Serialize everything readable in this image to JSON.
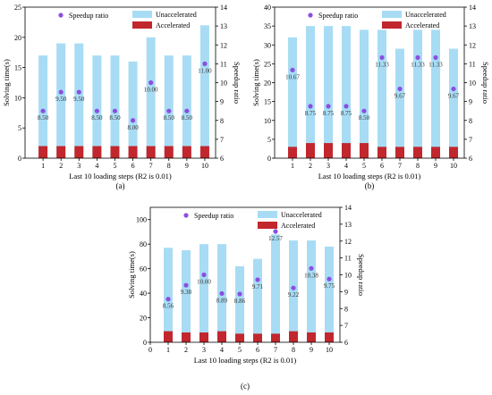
{
  "figure": {
    "panel_labels": [
      "(a)",
      "(b)",
      "(c)"
    ]
  },
  "colors": {
    "unaccelerated": "#a8dcf4",
    "accelerated": "#c1272d",
    "speedup": "#8a4fe0",
    "axis": "#000000"
  },
  "chart_data": [
    {
      "panel": "(a)",
      "type": "bar",
      "categories": [
        "1",
        "2",
        "3",
        "4",
        "5",
        "6",
        "7",
        "8",
        "9",
        "10"
      ],
      "series": [
        {
          "name": "Unaccelerated",
          "axis": "left",
          "values": [
            17,
            19,
            19,
            17,
            17,
            16,
            20,
            17,
            17,
            22
          ]
        },
        {
          "name": "Accelerated",
          "axis": "left",
          "values": [
            2,
            2,
            2,
            2,
            2,
            2,
            2,
            2,
            2,
            2
          ]
        },
        {
          "name": "Speedup ratio",
          "axis": "right",
          "kind": "scatter",
          "values": [
            8.5,
            9.5,
            9.5,
            8.5,
            8.5,
            8.0,
            10.0,
            8.5,
            8.5,
            11.0
          ],
          "labels": [
            "8.50",
            "9.50",
            "9.50",
            "8.50",
            "8.50",
            "8.00",
            "10.00",
            "8.50",
            "8.50",
            "11.00"
          ]
        }
      ],
      "xlabel": "Last 10 loading steps (R2 is 0.01)",
      "ylabel": "Solving time(s)",
      "y2label": "Speedup ratio",
      "xlim": [
        0,
        10.6
      ],
      "ylim": [
        0,
        25
      ],
      "yticks": [
        0,
        5,
        10,
        15,
        20,
        25
      ],
      "y2lim": [
        6,
        14
      ],
      "y2ticks": [
        6,
        7,
        8,
        9,
        10,
        11,
        12,
        13,
        14
      ],
      "legend": {
        "position": "top",
        "entries": [
          "Speedup ratio",
          "Unaccelerated",
          "Accelerated"
        ]
      }
    },
    {
      "panel": "(b)",
      "type": "bar",
      "categories": [
        "1",
        "2",
        "3",
        "4",
        "5",
        "6",
        "7",
        "8",
        "9",
        "10"
      ],
      "series": [
        {
          "name": "Unaccelerated",
          "axis": "left",
          "values": [
            32,
            35,
            35,
            35,
            34,
            34,
            29,
            34,
            34,
            29
          ]
        },
        {
          "name": "Accelerated",
          "axis": "left",
          "values": [
            3,
            4,
            4,
            4,
            4,
            3,
            3,
            3,
            3,
            3
          ]
        },
        {
          "name": "Speedup ratio",
          "axis": "right",
          "kind": "scatter",
          "values": [
            10.67,
            8.75,
            8.75,
            8.75,
            8.5,
            11.33,
            9.67,
            11.33,
            11.33,
            9.67
          ],
          "labels": [
            "10.67",
            "8.75",
            "8.75",
            "8.75",
            "8.50",
            "11.33",
            "9.67",
            "11.33",
            "11.33",
            "9.67"
          ]
        }
      ],
      "xlabel": "Last 10 loading steps (R2 is 0.01)",
      "ylabel": "Solving time(s)",
      "y2label": "Speedup ratio",
      "xlim": [
        0,
        10.6
      ],
      "ylim": [
        0,
        40
      ],
      "yticks": [
        0,
        5,
        10,
        15,
        20,
        25,
        30,
        35,
        40
      ],
      "y2lim": [
        6,
        14
      ],
      "y2ticks": [
        6,
        7,
        8,
        9,
        10,
        11,
        12,
        13,
        14
      ],
      "legend": {
        "position": "top",
        "entries": [
          "Speedup ratio",
          "Unaccelerated",
          "Accelerated"
        ]
      }
    },
    {
      "panel": "(c)",
      "type": "bar",
      "categories": [
        "1",
        "2",
        "3",
        "4",
        "5",
        "6",
        "7",
        "8",
        "9",
        "10"
      ],
      "series": [
        {
          "name": "Unaccelerated",
          "axis": "left",
          "values": [
            77,
            75,
            80,
            80,
            62,
            68,
            88,
            83,
            83,
            78
          ]
        },
        {
          "name": "Accelerated",
          "axis": "left",
          "values": [
            9,
            8,
            8,
            9,
            7,
            7,
            7,
            9,
            8,
            8
          ]
        },
        {
          "name": "Speedup ratio",
          "axis": "right",
          "kind": "scatter",
          "values": [
            8.56,
            9.38,
            10.0,
            8.89,
            8.86,
            9.71,
            12.57,
            9.22,
            10.38,
            9.75
          ],
          "labels": [
            "8.56",
            "9.38",
            "10.00",
            "8.89",
            "8.86",
            "9.71",
            "12.57",
            "9.22",
            "10.38",
            "9.75"
          ]
        }
      ],
      "xlabel": "Last 10 loading steps (R2 is 0.01)",
      "ylabel": "Solving time(s)",
      "y2label": "Speedup ratio",
      "xlim": [
        0,
        10.6
      ],
      "ylim": [
        0,
        110
      ],
      "yticks": [
        0,
        20,
        40,
        60,
        80,
        100
      ],
      "y2lim": [
        6,
        14
      ],
      "y2ticks": [
        6,
        7,
        8,
        9,
        10,
        11,
        12,
        13,
        14
      ],
      "xticks": [
        0,
        1,
        2,
        3,
        4,
        5,
        6,
        7,
        8,
        9,
        10
      ],
      "legend": {
        "position": "top",
        "entries": [
          "Speedup ratio",
          "Unaccelerated",
          "Accelerated"
        ]
      }
    }
  ]
}
